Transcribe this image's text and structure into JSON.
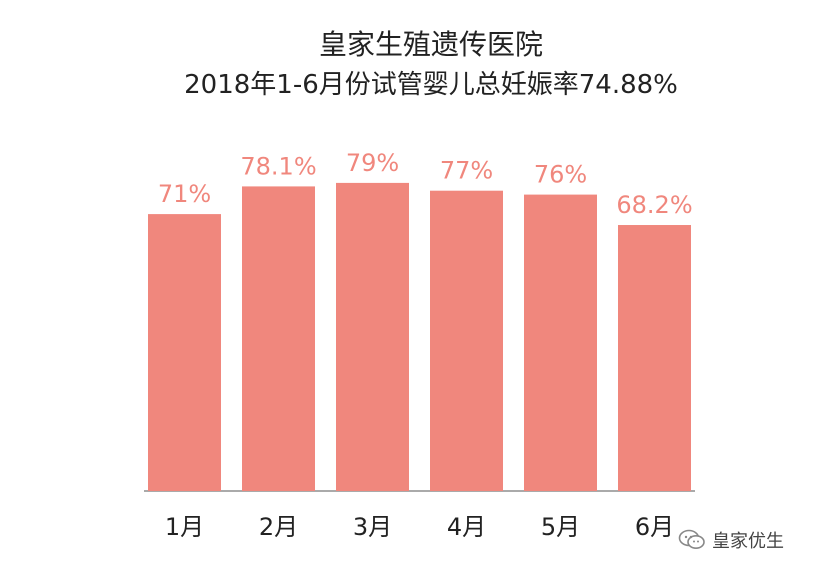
{
  "header": {
    "title": "皇家生殖遗传医院",
    "subtitle": "2018年1-6月份试管婴儿总妊娠率74.88%"
  },
  "watermark": {
    "text": "皇家优生",
    "icon": "wechat-icon"
  },
  "colors": {
    "bar": "#f0877d",
    "label": "#f0877d",
    "tick": "#222222",
    "baseline": "#555555"
  },
  "chart_data": {
    "type": "bar",
    "title": "2018年1-6月份试管婴儿总妊娠率74.88%",
    "categories": [
      "1月",
      "2月",
      "3月",
      "4月",
      "5月",
      "6月"
    ],
    "values": [
      71,
      78.1,
      79,
      77,
      76,
      68.2
    ],
    "data_labels": [
      "71%",
      "78.1%",
      "79%",
      "77%",
      "76%",
      "68.2%"
    ],
    "xlabel": "",
    "ylabel": "",
    "ylim": [
      0,
      100
    ],
    "grid": false,
    "legend": "none"
  }
}
